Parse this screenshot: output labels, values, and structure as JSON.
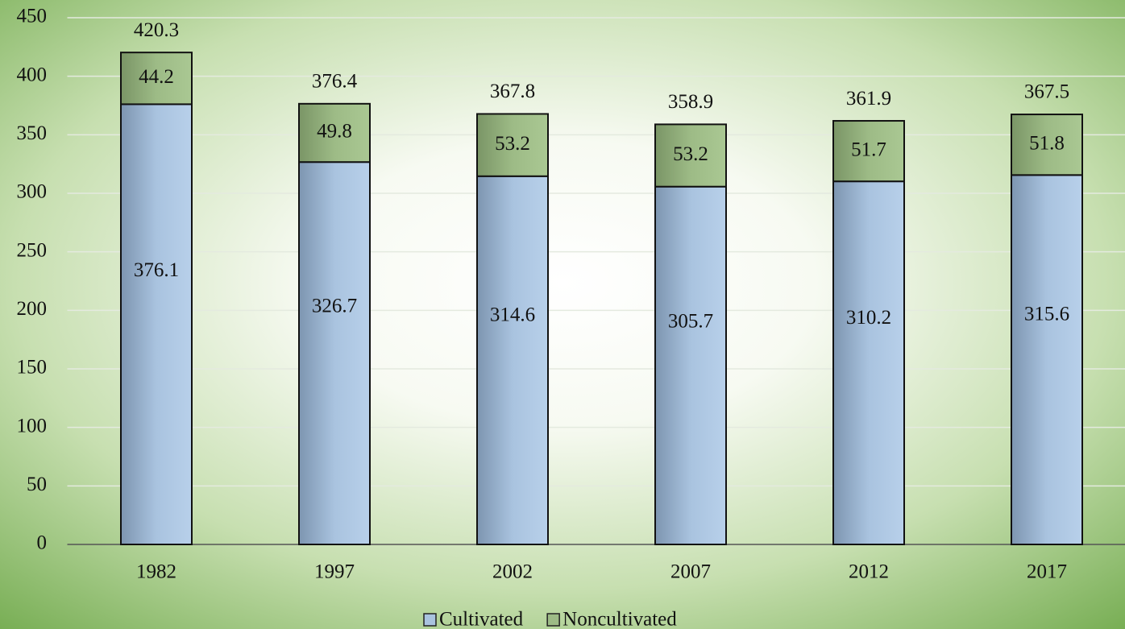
{
  "chart_data": {
    "type": "stacked_bar",
    "categories": [
      "1982",
      "1997",
      "2002",
      "2007",
      "2012",
      "2017"
    ],
    "series": [
      {
        "name": "Cultivated",
        "color": "#a9c3df",
        "values": [
          376.1,
          326.7,
          314.6,
          305.7,
          310.2,
          315.6
        ]
      },
      {
        "name": "Noncultivated",
        "color": "#9dbb86",
        "values": [
          44.2,
          49.8,
          53.2,
          53.2,
          51.7,
          51.8
        ]
      }
    ],
    "totals": [
      420.3,
      376.4,
      367.8,
      358.9,
      361.9,
      367.5
    ],
    "ylim": [
      0,
      450
    ],
    "yticks": [
      0,
      50,
      100,
      150,
      200,
      250,
      300,
      350,
      400,
      450
    ],
    "grid": true,
    "legend": "bottom"
  }
}
